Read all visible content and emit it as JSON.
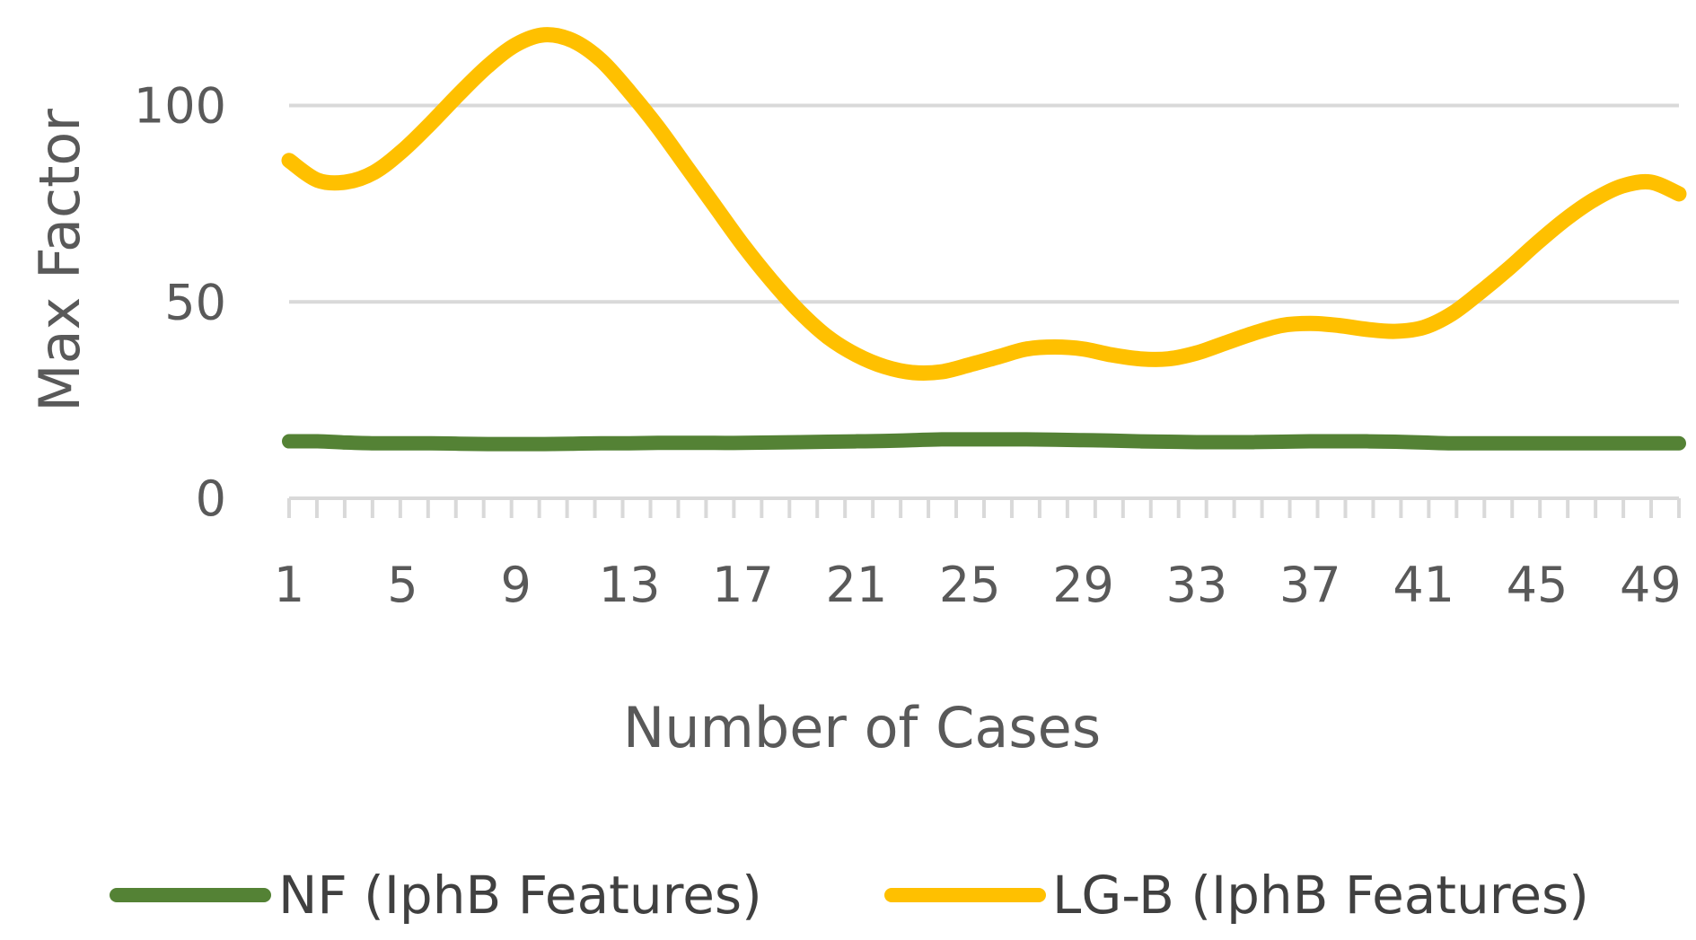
{
  "chart_data": {
    "type": "line",
    "title": "",
    "xlabel": "Number of Cases",
    "ylabel": "Max Factor",
    "x": [
      1,
      2,
      3,
      4,
      5,
      6,
      7,
      8,
      9,
      10,
      11,
      12,
      13,
      14,
      15,
      16,
      17,
      18,
      19,
      20,
      21,
      22,
      23,
      24,
      25,
      26,
      27,
      28,
      29,
      30,
      31,
      32,
      33,
      34,
      35,
      36,
      37,
      38,
      39,
      40,
      41,
      42,
      43,
      44,
      45,
      46,
      47,
      48,
      49,
      50
    ],
    "x_tick_labels": [
      "1",
      "5",
      "9",
      "13",
      "17",
      "21",
      "25",
      "29",
      "33",
      "37",
      "41",
      "45",
      "49"
    ],
    "y_ticks": [
      0,
      50,
      100
    ],
    "ylim": [
      0,
      120
    ],
    "grid": true,
    "legend_position": "bottom",
    "series": [
      {
        "name": "NF (IphB Features)",
        "color": "#548235",
        "values": [
          14.5,
          14.5,
          14.2,
          14.0,
          14.0,
          14.0,
          13.9,
          13.8,
          13.8,
          13.8,
          13.9,
          14.0,
          14.0,
          14.1,
          14.1,
          14.1,
          14.1,
          14.2,
          14.3,
          14.4,
          14.5,
          14.6,
          14.8,
          15.0,
          15.0,
          15.0,
          15.0,
          14.9,
          14.8,
          14.7,
          14.5,
          14.4,
          14.3,
          14.3,
          14.3,
          14.4,
          14.5,
          14.5,
          14.5,
          14.4,
          14.2,
          14.0,
          14.0,
          14.0,
          14.0,
          14.0,
          14.0,
          14.0,
          14.0,
          14.0
        ]
      },
      {
        "name": "LG-B (IphB Features)",
        "color": "#ffc000",
        "values": [
          86.0,
          81.0,
          80.5,
          83.0,
          88.5,
          95.5,
          103.0,
          110.0,
          115.5,
          118.0,
          116.5,
          111.5,
          103.5,
          94.5,
          84.5,
          74.5,
          64.5,
          55.5,
          47.5,
          41.0,
          36.5,
          33.5,
          32.0,
          32.2,
          34.0,
          36.0,
          38.0,
          38.5,
          38.0,
          36.5,
          35.5,
          35.5,
          37.0,
          39.5,
          42.0,
          44.0,
          44.5,
          44.0,
          43.0,
          42.5,
          43.5,
          47.0,
          52.5,
          58.5,
          65.0,
          71.0,
          76.0,
          79.5,
          80.5,
          77.5
        ]
      }
    ]
  }
}
